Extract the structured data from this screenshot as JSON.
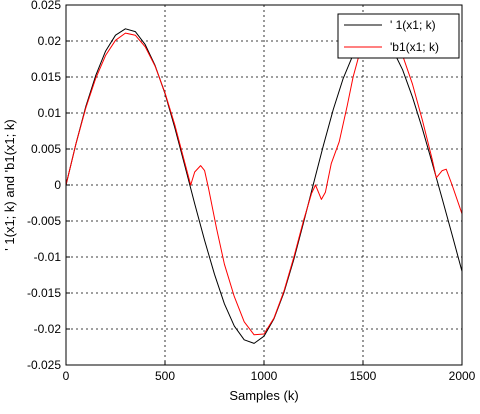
{
  "chart_data": {
    "type": "line",
    "xlabel": "Samples (k)",
    "ylabel": "' 1(x1; k) and 'b1(x1; k)",
    "xlim": [
      0,
      2000
    ],
    "ylim": [
      -0.025,
      0.025
    ],
    "grid": true,
    "grid_style": "dotted",
    "legend_position": "top-right",
    "x_ticks": [
      0,
      500,
      1000,
      1500,
      2000
    ],
    "x_tick_labels": [
      "0",
      "500",
      "1000",
      "1500",
      "2000"
    ],
    "y_ticks": [
      -0.025,
      -0.02,
      -0.015,
      -0.01,
      -0.005,
      0,
      0.005,
      0.01,
      0.015,
      0.02,
      0.025
    ],
    "y_tick_labels": [
      "-0.025",
      "-0.02",
      "-0.015",
      "-0.01",
      "-0.005",
      "0",
      "0.005",
      "0.01",
      "0.015",
      "0.02",
      "0.025"
    ],
    "series": [
      {
        "name": "' 1(x1; k)",
        "color": "#000000",
        "x": [
          0,
          50,
          100,
          150,
          200,
          250,
          300,
          350,
          400,
          450,
          500,
          550,
          600,
          650,
          700,
          750,
          800,
          850,
          900,
          950,
          1000,
          1050,
          1100,
          1150,
          1200,
          1250,
          1300,
          1350,
          1400,
          1450,
          1500,
          1550,
          1600,
          1650,
          1700,
          1750,
          1800,
          1850,
          1900,
          1950,
          2000
        ],
        "y": [
          0.0,
          0.0057,
          0.0109,
          0.0152,
          0.0186,
          0.0208,
          0.0217,
          0.0213,
          0.0195,
          0.0166,
          0.0127,
          0.0079,
          0.0027,
          -0.0026,
          -0.0077,
          -0.0124,
          -0.0165,
          -0.0196,
          -0.0215,
          -0.022,
          -0.021,
          -0.0186,
          -0.015,
          -0.0104,
          -0.0052,
          0.0002,
          0.0055,
          0.0105,
          0.0148,
          0.0181,
          0.0202,
          0.021,
          0.0205,
          0.0188,
          0.016,
          0.0122,
          0.0078,
          0.003,
          -0.0019,
          -0.0069,
          -0.012
        ]
      },
      {
        "name": "'b1(x1; k)",
        "color": "#ff0000",
        "x": [
          0,
          50,
          100,
          150,
          200,
          250,
          300,
          350,
          400,
          450,
          500,
          550,
          600,
          630,
          650,
          680,
          700,
          720,
          760,
          800,
          850,
          900,
          950,
          1000,
          1050,
          1100,
          1150,
          1200,
          1240,
          1260,
          1290,
          1310,
          1340,
          1380,
          1420,
          1450,
          1480,
          1500,
          1550,
          1600,
          1650,
          1700,
          1750,
          1800,
          1850,
          1870,
          1900,
          1920,
          1950,
          2000
        ],
        "y": [
          0.0,
          0.0057,
          0.0107,
          0.0148,
          0.018,
          0.0201,
          0.0211,
          0.0208,
          0.0192,
          0.0165,
          0.0128,
          0.0083,
          0.0031,
          0.0,
          0.0018,
          0.0027,
          0.002,
          -0.0005,
          -0.006,
          -0.011,
          -0.0155,
          -0.019,
          -0.0208,
          -0.0207,
          -0.0185,
          -0.0148,
          -0.0101,
          -0.0049,
          -0.0012,
          0.0,
          -0.002,
          -0.001,
          0.003,
          0.006,
          0.011,
          0.015,
          0.018,
          0.02,
          0.0215,
          0.0218,
          0.0205,
          0.018,
          0.014,
          0.009,
          0.0035,
          0.001,
          0.002,
          0.0022,
          0.0,
          -0.004
        ]
      }
    ]
  }
}
